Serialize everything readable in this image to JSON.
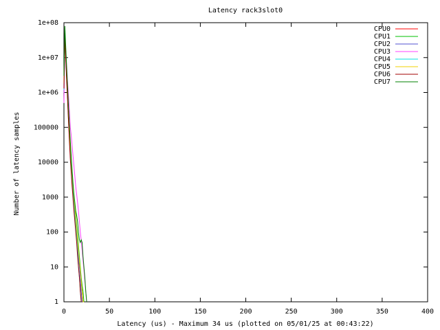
{
  "chart_data": {
    "type": "line",
    "title": "Latency rack3slot0",
    "x_label": "Latency (us) - Maximum 34 us (plotted on 05/01/25 at 00:43:22)",
    "y_label": "Number of latency samples",
    "xlim": [
      0,
      400
    ],
    "xticks": [
      0,
      50,
      100,
      150,
      200,
      250,
      300,
      350,
      400
    ],
    "ylim": [
      1,
      100000000
    ],
    "ylog": true,
    "yticks": [
      1,
      10,
      100,
      1000,
      10000,
      100000,
      {
        "value": 1000000,
        "label": "1e+06"
      },
      {
        "value": 10000000,
        "label": "1e+07"
      },
      {
        "value": 100000000,
        "label": "1e+08"
      }
    ],
    "legend": "top right",
    "x": [
      0,
      1,
      2,
      3,
      4,
      5,
      6,
      7,
      8,
      9,
      10,
      11,
      12,
      13,
      14,
      15,
      16,
      17,
      18,
      19,
      20,
      21,
      22,
      23,
      24,
      25,
      26,
      27,
      28,
      29,
      30,
      31,
      32,
      33,
      34
    ],
    "series": [
      {
        "name": "CPU0",
        "color": "#ff0000",
        "values": [
          2000000,
          50000000,
          12000000,
          3000000,
          800000,
          200000,
          60000,
          20000,
          8000,
          3000,
          1500,
          800,
          400,
          200,
          100,
          60,
          30,
          15,
          8,
          4,
          2,
          1,
          null,
          1,
          null,
          null,
          null,
          null,
          null,
          null,
          null,
          null,
          null,
          null,
          null
        ]
      },
      {
        "name": "CPU1",
        "color": "#00c000",
        "values": [
          1500000,
          40000000,
          15000000,
          4000000,
          1000000,
          300000,
          80000,
          25000,
          10000,
          4000,
          2000,
          1000,
          600,
          300,
          150,
          80,
          40,
          20,
          10,
          5,
          3,
          2,
          1,
          null,
          null,
          null,
          null,
          null,
          null,
          null,
          null,
          null,
          null,
          null,
          null
        ]
      },
      {
        "name": "CPU2",
        "color": "#5050d0",
        "values": [
          1000000,
          30000000,
          10000000,
          2500000,
          700000,
          150000,
          50000,
          15000,
          6000,
          2500,
          1200,
          600,
          300,
          150,
          80,
          40,
          20,
          10,
          5,
          2,
          1,
          null,
          null,
          null,
          null,
          null,
          null,
          null,
          null,
          null,
          null,
          null,
          null,
          null,
          null
        ]
      },
      {
        "name": "CPU3",
        "color": "#ff40ff",
        "values": [
          500000,
          20000000,
          15000000,
          6000000,
          2000000,
          800000,
          300000,
          100000,
          60000,
          30000,
          15000,
          8000,
          4000,
          2000,
          1200,
          700,
          400,
          200,
          100,
          60,
          30,
          15,
          8,
          4,
          2,
          1,
          null,
          null,
          null,
          null,
          null,
          null,
          null,
          null,
          null
        ]
      },
      {
        "name": "CPU4",
        "color": "#00e0e0",
        "values": [
          1200000,
          35000000,
          11000000,
          3000000,
          900000,
          250000,
          70000,
          20000,
          7000,
          3000,
          1400,
          700,
          350,
          150,
          70,
          30,
          10,
          5,
          2,
          1,
          null,
          null,
          null,
          null,
          null,
          null,
          null,
          null,
          null,
          null,
          null,
          null,
          null,
          null,
          null
        ]
      },
      {
        "name": "CPU5",
        "color": "#f0d000",
        "values": [
          1800000,
          45000000,
          13000000,
          3500000,
          1000000,
          280000,
          90000,
          30000,
          12000,
          5000,
          2000,
          1000,
          500,
          250,
          120,
          60,
          30,
          15,
          8,
          4,
          2,
          1,
          1,
          null,
          null,
          null,
          null,
          null,
          null,
          null,
          null,
          null,
          null,
          null,
          null
        ]
      },
      {
        "name": "CPU6",
        "color": "#a00000",
        "values": [
          1300000,
          38000000,
          9000000,
          2000000,
          600000,
          150000,
          40000,
          12000,
          5000,
          2000,
          900,
          400,
          200,
          100,
          50,
          20,
          10,
          5,
          2,
          1,
          null,
          null,
          null,
          null,
          null,
          null,
          null,
          null,
          null,
          null,
          null,
          null,
          null,
          null,
          null
        ]
      },
      {
        "name": "CPU7",
        "color": "#008000",
        "values": [
          3000000,
          80000000,
          20000000,
          5000000,
          1500000,
          400000,
          120000,
          40000,
          15000,
          6000,
          2500,
          1200,
          700,
          400,
          300,
          200,
          100,
          60,
          50,
          60,
          50,
          20,
          10,
          5,
          2,
          1,
          null,
          null,
          null,
          1,
          null,
          null,
          null,
          null,
          1
        ]
      }
    ]
  }
}
